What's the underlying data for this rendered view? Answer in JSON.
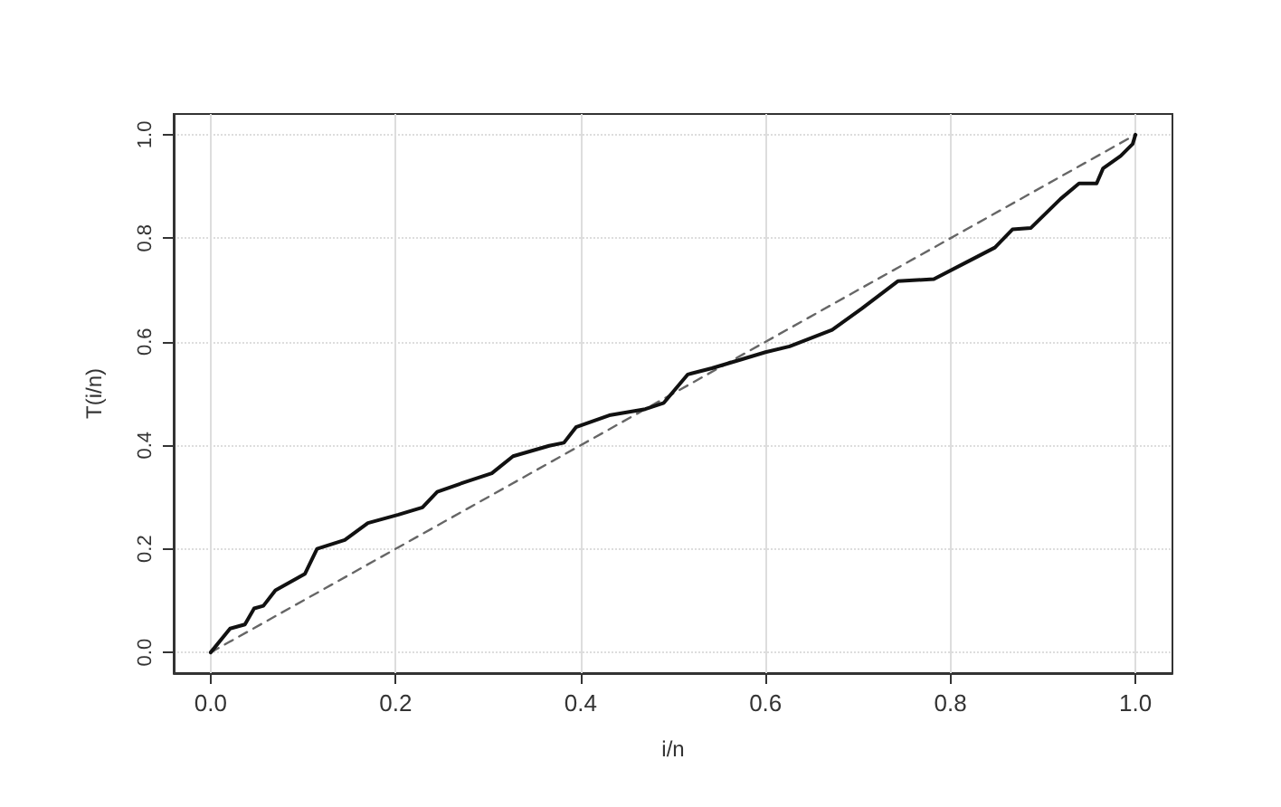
{
  "chart_data": {
    "type": "line",
    "xlabel": "i/n",
    "ylabel": "T(i/n)",
    "xlim": [
      -0.04,
      1.04
    ],
    "ylim": [
      -0.04,
      1.04
    ],
    "xticks": [
      {
        "value": 0,
        "label": "0.0"
      },
      {
        "value": 0.2,
        "label": "0.2"
      },
      {
        "value": 0.4,
        "label": "0.4"
      },
      {
        "value": 0.6,
        "label": "0.6"
      },
      {
        "value": 0.8,
        "label": "0.8"
      },
      {
        "value": 1,
        "label": "1.0"
      }
    ],
    "yticks": [
      {
        "value": 0,
        "label": "0.0"
      },
      {
        "value": 0.2,
        "label": "0.2"
      },
      {
        "value": 0.4,
        "label": "0.4"
      },
      {
        "value": 0.6,
        "label": "0.6"
      },
      {
        "value": 0.8,
        "label": "0.8"
      },
      {
        "value": 1,
        "label": "1.0"
      }
    ],
    "grid": true,
    "marker": "none",
    "series": [
      {
        "color": "#111111",
        "line_style": "solid",
        "x": [
          0,
          0.021,
          0.037,
          0.047,
          0.057,
          0.07,
          0.102,
          0.115,
          0.145,
          0.17,
          0.203,
          0.229,
          0.245,
          0.275,
          0.304,
          0.327,
          0.366,
          0.382,
          0.395,
          0.431,
          0.47,
          0.49,
          0.516,
          0.542,
          0.574,
          0.6,
          0.626,
          0.672,
          0.704,
          0.743,
          0.782,
          0.822,
          0.848,
          0.867,
          0.887,
          0.919,
          0.939,
          0.958,
          0.965,
          0.984,
          0.997,
          1.0
        ],
        "values": [
          0,
          0.046,
          0.054,
          0.085,
          0.09,
          0.12,
          0.152,
          0.2,
          0.217,
          0.25,
          0.266,
          0.28,
          0.31,
          0.329,
          0.346,
          0.379,
          0.399,
          0.405,
          0.435,
          0.458,
          0.47,
          0.482,
          0.537,
          0.549,
          0.566,
          0.58,
          0.591,
          0.623,
          0.664,
          0.717,
          0.721,
          0.758,
          0.782,
          0.817,
          0.82,
          0.876,
          0.906,
          0.906,
          0.935,
          0.959,
          0.982,
          1.0
        ]
      },
      {
        "color": "#666666",
        "line_style": "dashed",
        "x": [
          0,
          1
        ],
        "values": [
          0,
          1
        ]
      }
    ]
  }
}
